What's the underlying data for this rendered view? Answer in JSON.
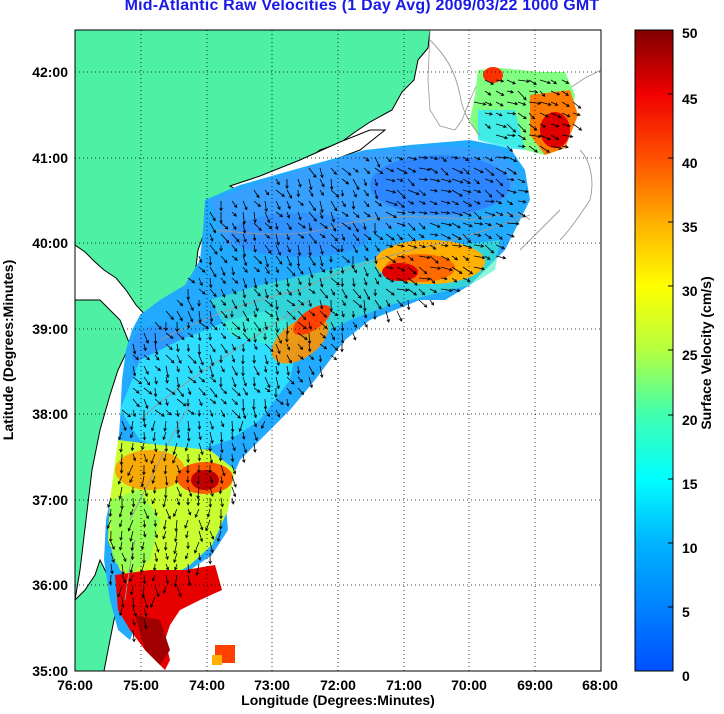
{
  "title": "Mid-Atlantic Raw Velocities (1 Day Avg) 2009/03/22 1000 GMT",
  "xlabel": "Longitude (Degrees:Minutes)",
  "ylabel": "Latitude (Degrees:Minutes)",
  "colorbar": {
    "label": "Surface Velocity (cm/s)",
    "ticks": [
      "0",
      "5",
      "10",
      "15",
      "20",
      "25",
      "30",
      "35",
      "40",
      "45",
      "50"
    ],
    "range": [
      0,
      50
    ],
    "colormap": "jet"
  },
  "axes": {
    "x_ticks": [
      "76:00",
      "75:00",
      "74:00",
      "73:00",
      "72:00",
      "71:00",
      "70:00",
      "69:00",
      "68:00"
    ],
    "y_ticks": [
      "35:00",
      "36:00",
      "37:00",
      "38:00",
      "39:00",
      "40:00",
      "41:00",
      "42:00"
    ],
    "lon_range": [
      -76,
      -68
    ],
    "lat_range": [
      35,
      42.5
    ],
    "grid": "dotted"
  },
  "colors": {
    "land": "#4ef0a4",
    "title": "#1a1ae6",
    "coastline": "#000000",
    "bathymetry": "#999999"
  }
}
